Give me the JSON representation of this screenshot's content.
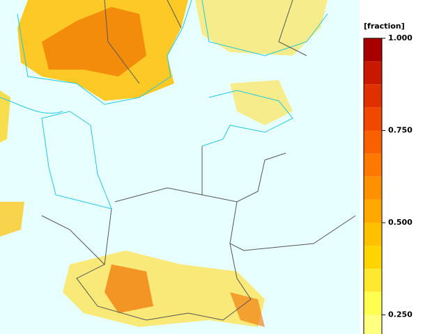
{
  "colorbar": {
    "title": "[fraction]",
    "levels": [
      0.1875,
      0.25,
      0.3125,
      0.375,
      0.4375,
      0.5,
      0.5625,
      0.625,
      0.6875,
      0.75,
      0.8125,
      0.875,
      0.9375,
      1.0
    ],
    "colors": [
      "#ffff80",
      "#ffff50",
      "#ffe830",
      "#ffd400",
      "#ffc000",
      "#ffa800",
      "#ff9000",
      "#ff7800",
      "#f86000",
      "#f04800",
      "#e03000",
      "#c81800",
      "#a80000"
    ],
    "ticks": [
      {
        "value": 1.0,
        "label": "1.000"
      },
      {
        "value": 0.75,
        "label": "0.750"
      },
      {
        "value": 0.5,
        "label": "0.500"
      },
      {
        "value": 0.25,
        "label": "0.250"
      }
    ]
  }
}
